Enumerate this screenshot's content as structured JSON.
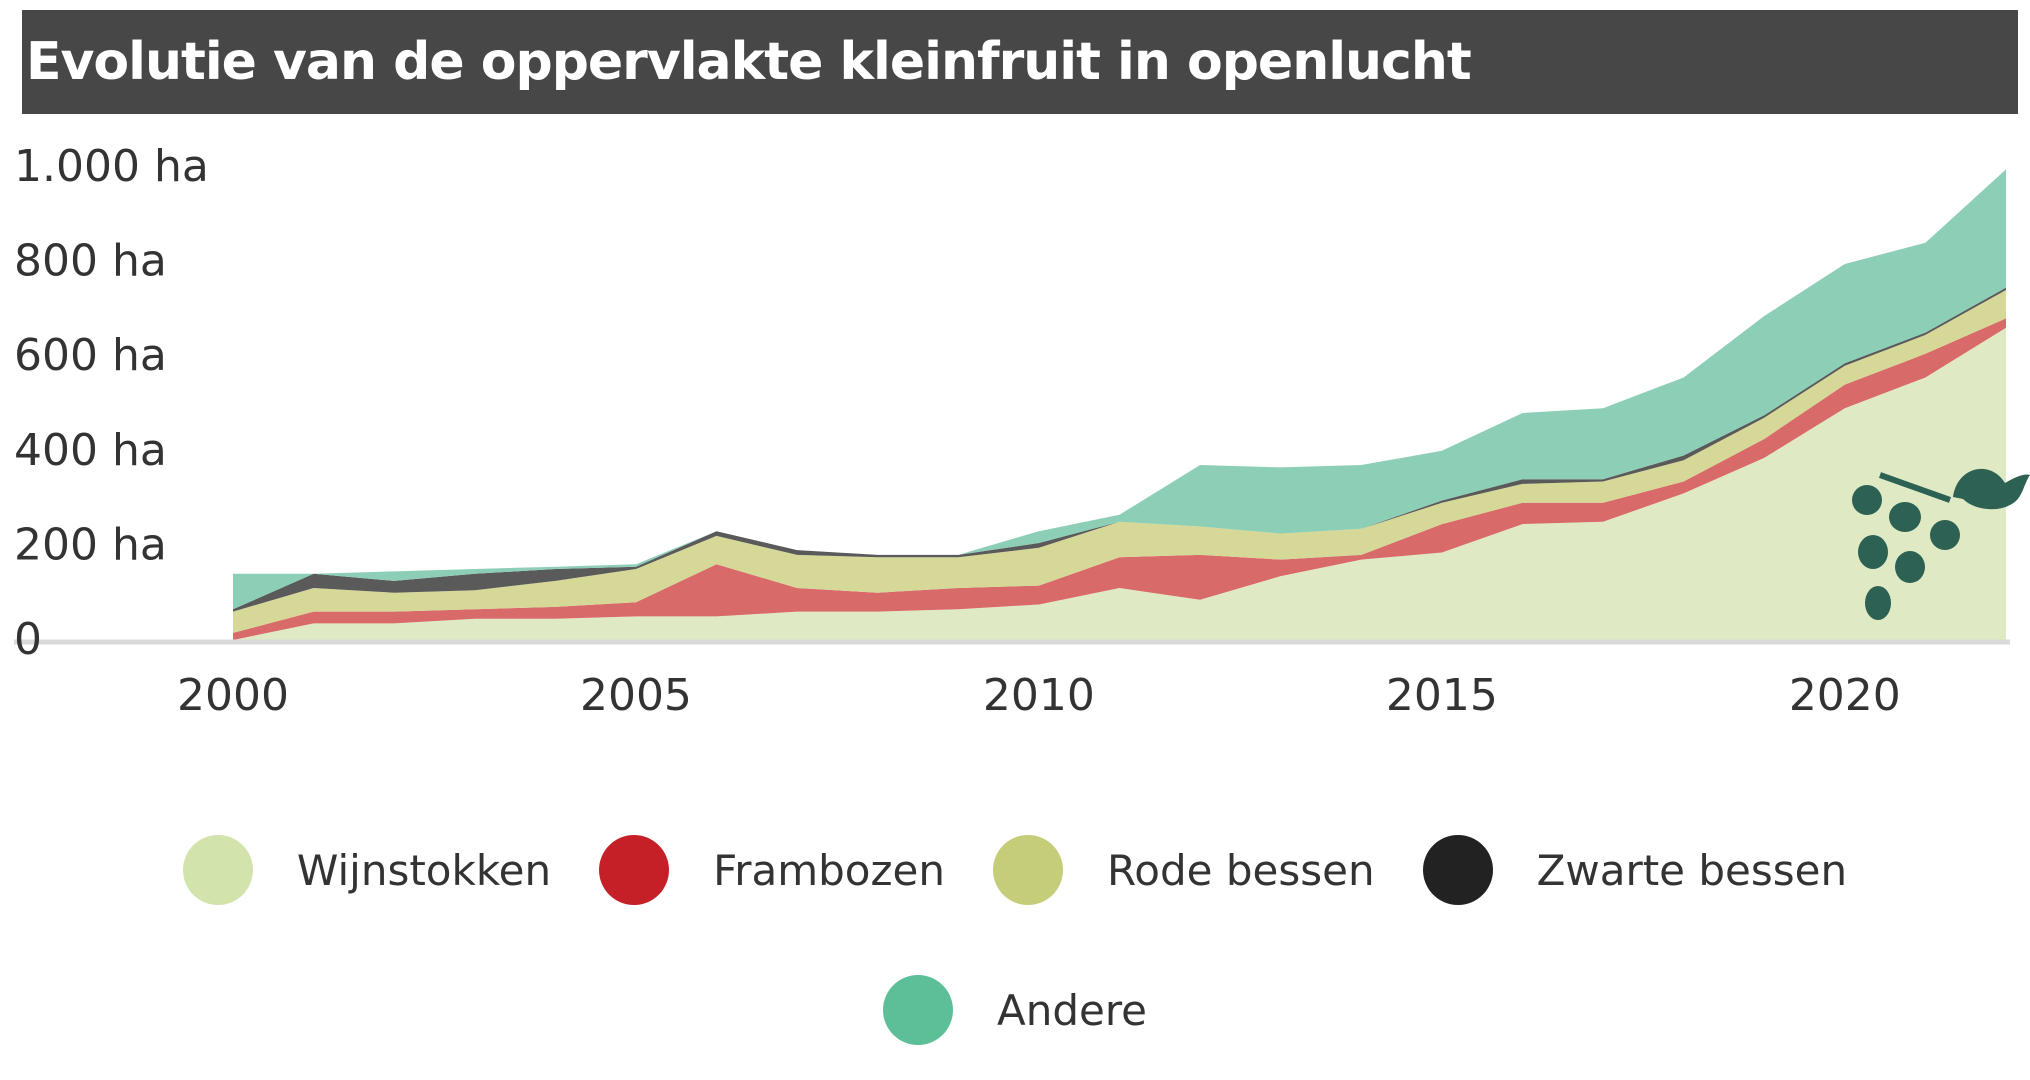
{
  "title": "Evolutie van de oppervlakte kleinfruit in openlucht",
  "chart_data": {
    "type": "area",
    "stacked": true,
    "title": "Evolutie van de oppervlakte kleinfruit in openlucht",
    "xlabel": "",
    "ylabel": "",
    "x": [
      2000,
      2001,
      2002,
      2003,
      2004,
      2005,
      2006,
      2007,
      2008,
      2009,
      2010,
      2011,
      2012,
      2013,
      2014,
      2015,
      2016,
      2017,
      2018,
      2019,
      2020,
      2021,
      2022
    ],
    "x_ticks": [
      "2000",
      "2005",
      "2010",
      "2015",
      "2020"
    ],
    "y_ticks": [
      "0",
      "200 ha",
      "400 ha",
      "600 ha",
      "800 ha",
      "1.000 ha"
    ],
    "ylim": [
      0,
      1000
    ],
    "grid": false,
    "legend_position": "bottom",
    "series": [
      {
        "name": "Wijnstokken",
        "color": "#dfeac4",
        "values": [
          0,
          35,
          35,
          45,
          45,
          50,
          50,
          60,
          60,
          65,
          75,
          110,
          85,
          135,
          170,
          185,
          245,
          250,
          310,
          385,
          490,
          555,
          660
        ]
      },
      {
        "name": "Frambozen",
        "color": "#d96a6a",
        "values": [
          15,
          25,
          25,
          20,
          25,
          30,
          110,
          50,
          40,
          45,
          40,
          65,
          95,
          35,
          10,
          60,
          45,
          40,
          25,
          40,
          50,
          50,
          20
        ]
      },
      {
        "name": "Rode bessen",
        "color": "#d6d897",
        "values": [
          45,
          50,
          40,
          40,
          55,
          70,
          60,
          70,
          75,
          65,
          80,
          75,
          60,
          55,
          55,
          45,
          40,
          45,
          45,
          45,
          40,
          40,
          60
        ]
      },
      {
        "name": "Zwarte bessen",
        "color": "#5a5a5a",
        "values": [
          5,
          30,
          25,
          35,
          25,
          5,
          10,
          10,
          5,
          5,
          10,
          0,
          0,
          0,
          0,
          5,
          10,
          5,
          10,
          5,
          5,
          5,
          5
        ]
      },
      {
        "name": "Andere",
        "color": "#8ccfb6",
        "values": [
          75,
          0,
          20,
          10,
          5,
          5,
          0,
          0,
          0,
          0,
          25,
          15,
          130,
          140,
          135,
          105,
          140,
          150,
          165,
          210,
          210,
          190,
          250
        ]
      }
    ]
  },
  "legend": [
    {
      "label": "Wijnstokken",
      "color": "#d2e4ac"
    },
    {
      "label": "Frambozen",
      "color": "#c52027"
    },
    {
      "label": "Rode bessen",
      "color": "#c6cd78"
    },
    {
      "label": "Zwarte bessen",
      "color": "#222222"
    },
    {
      "label": "Andere",
      "color": "#5dbf98"
    }
  ],
  "icon": "grape-vine-icon",
  "icon_color": "#2d6153"
}
